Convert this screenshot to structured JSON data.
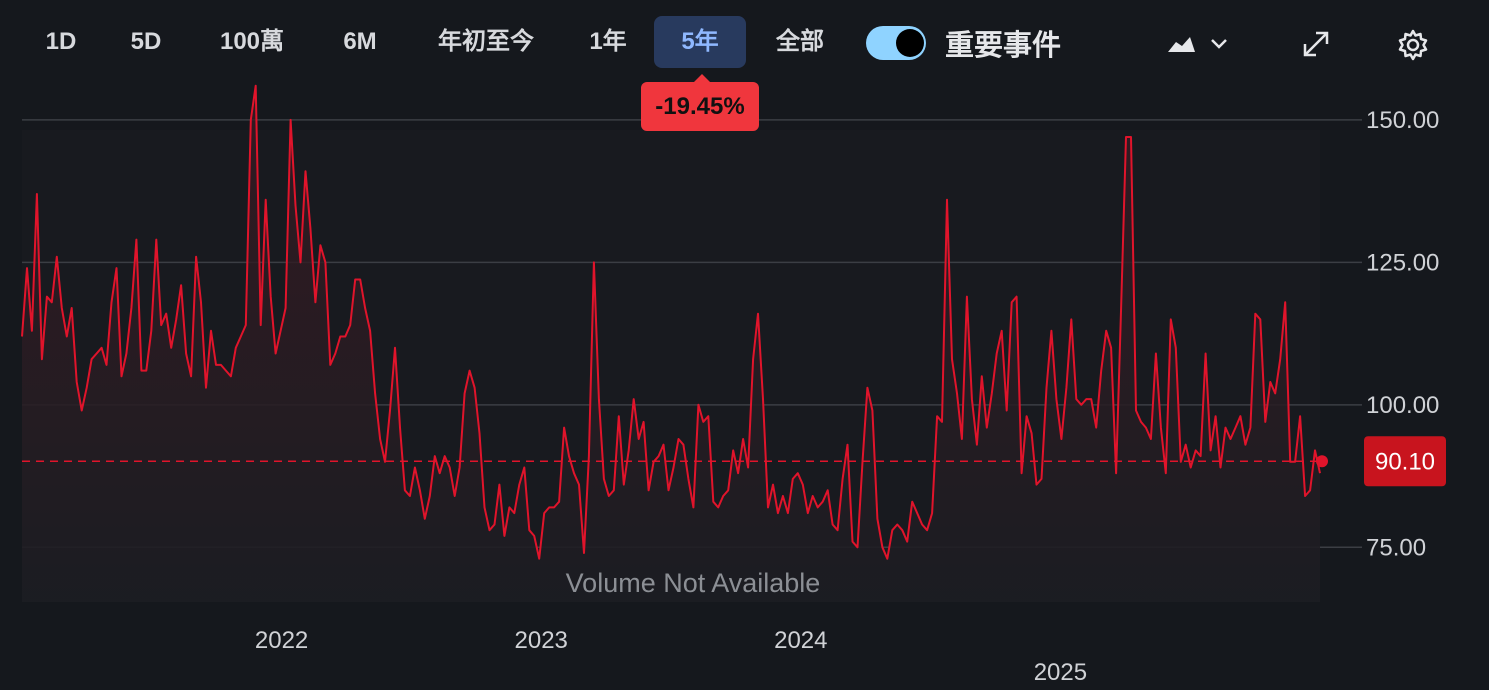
{
  "toolbar": {
    "ranges": [
      "1D",
      "5D",
      "100萬",
      "6M",
      "年初至今",
      "1年",
      "5年",
      "全部"
    ],
    "active_range": "5年",
    "events_label": "重要事件",
    "events_toggle_on": true,
    "change_badge": "-19.45%",
    "icons": [
      "area-chart-icon",
      "chevron-down-icon",
      "expand-icon",
      "gear-icon"
    ]
  },
  "chart_data": {
    "type": "area",
    "y_ticks": [
      "150.00",
      "125.00",
      "100.00",
      "75.00"
    ],
    "y_tick_values": [
      150,
      125,
      100,
      75
    ],
    "x_ticks": [
      "2022",
      "2023",
      "2024",
      "2025"
    ],
    "x_tick_fracs": [
      0.2,
      0.4,
      0.6,
      0.8
    ],
    "ylim": [
      64,
      157
    ],
    "last_price": "90.10",
    "last_value": 90.1,
    "volume_note": "Volume Not Available",
    "colors": {
      "line": "#e0142b",
      "last_tag": "#c8141e",
      "grid": "#3b3e44"
    },
    "values": [
      112,
      124,
      113,
      137,
      108,
      119,
      118,
      126,
      117,
      112,
      117,
      104,
      99,
      103,
      108,
      109,
      110,
      107,
      118,
      124,
      105,
      109,
      117,
      129,
      106,
      106,
      113,
      129,
      114,
      116,
      110,
      115,
      121,
      109,
      105,
      126,
      118,
      103,
      113,
      107,
      107,
      106,
      105,
      110,
      112,
      114,
      150,
      156,
      114,
      136,
      119,
      109,
      113,
      117,
      150,
      135,
      125,
      141,
      131,
      118,
      128,
      125,
      107,
      109,
      112,
      112,
      114,
      122,
      122,
      117,
      113,
      102,
      94,
      90,
      99,
      110,
      96,
      85,
      84,
      89,
      85,
      80,
      84,
      91,
      88,
      91,
      89,
      84,
      89,
      102,
      106,
      103,
      95,
      82,
      78,
      79,
      86,
      77,
      82,
      81,
      86,
      89,
      78,
      77,
      73,
      81,
      82,
      82,
      83,
      96,
      91,
      88,
      86,
      74,
      91,
      125,
      101,
      87,
      84,
      85,
      98,
      86,
      92,
      101,
      94,
      97,
      85,
      90,
      91,
      93,
      85,
      89,
      94,
      93,
      87,
      82,
      100,
      97,
      98,
      83,
      82,
      84,
      85,
      92,
      88,
      94,
      89,
      108,
      116,
      101,
      82,
      86,
      81,
      84,
      81,
      87,
      88,
      86,
      81,
      84,
      82,
      83,
      85,
      79,
      78,
      87,
      93,
      76,
      75,
      90,
      103,
      99,
      80,
      75,
      73,
      78,
      79,
      78,
      76,
      83,
      81,
      79,
      78,
      81,
      98,
      97,
      136,
      108,
      102,
      94,
      119,
      101,
      93,
      105,
      96,
      102,
      109,
      113,
      99,
      118,
      119,
      88,
      98,
      95,
      86,
      87,
      103,
      113,
      101,
      94,
      103,
      115,
      101,
      100,
      101,
      101,
      96,
      106,
      113,
      110,
      88,
      117,
      147,
      147,
      99,
      97,
      96,
      94,
      109,
      96,
      88,
      115,
      110,
      90,
      93,
      89,
      92,
      91,
      109,
      92,
      98,
      89,
      96,
      94,
      96,
      98,
      93,
      96,
      116,
      115,
      97,
      104,
      102,
      108,
      118,
      90,
      90,
      98,
      84,
      85,
      92,
      88
    ]
  }
}
